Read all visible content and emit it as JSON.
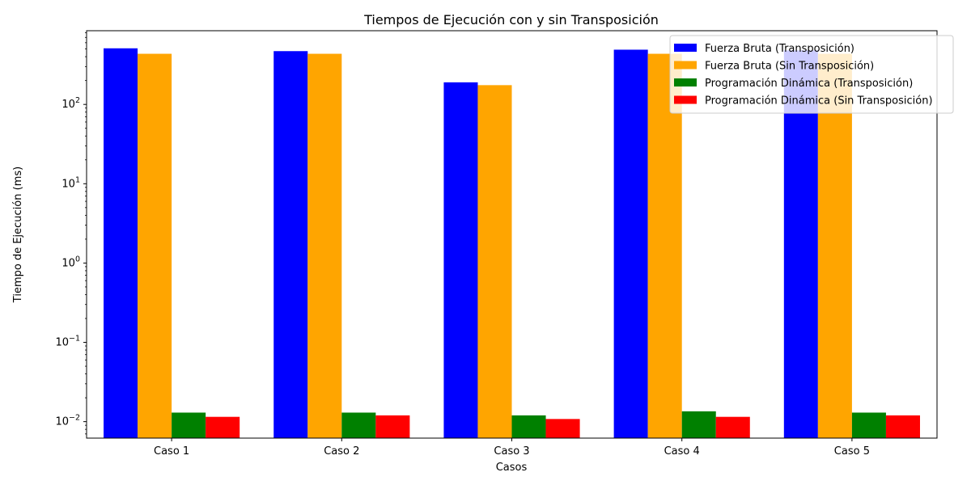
{
  "chart_data": {
    "type": "bar",
    "title": "Tiempos de Ejecución con y sin Transposición",
    "xlabel": "Casos",
    "ylabel": "Tiempo de Ejecución (ms)",
    "yscale": "log",
    "ylim": [
      0.0062,
      850
    ],
    "categories": [
      "Caso 1",
      "Caso 2",
      "Caso 3",
      "Caso 4",
      "Caso 5"
    ],
    "series": [
      {
        "name": "Fuerza Bruta (Transposición)",
        "color": "#0000ff",
        "values": [
          510,
          470,
          190,
          490,
          480
        ]
      },
      {
        "name": "Fuerza Bruta (Sin Transposición)",
        "color": "#ffa500",
        "values": [
          435,
          435,
          175,
          435,
          435
        ]
      },
      {
        "name": "Programación Dinámica (Transposición)",
        "color": "#008000",
        "values": [
          0.013,
          0.013,
          0.012,
          0.0135,
          0.013
        ]
      },
      {
        "name": "Programación Dinámica (Sin Transposición)",
        "color": "#ff0000",
        "values": [
          0.0115,
          0.012,
          0.0108,
          0.0115,
          0.012
        ]
      }
    ],
    "y_ticks": [
      {
        "value": 0.01,
        "base": "10",
        "exp": "−2"
      },
      {
        "value": 0.1,
        "base": "10",
        "exp": "−1"
      },
      {
        "value": 1,
        "base": "10",
        "exp": "0"
      },
      {
        "value": 10,
        "base": "10",
        "exp": "1"
      },
      {
        "value": 100,
        "base": "10",
        "exp": "2"
      }
    ],
    "legend_position": "top-right",
    "grid": false
  }
}
